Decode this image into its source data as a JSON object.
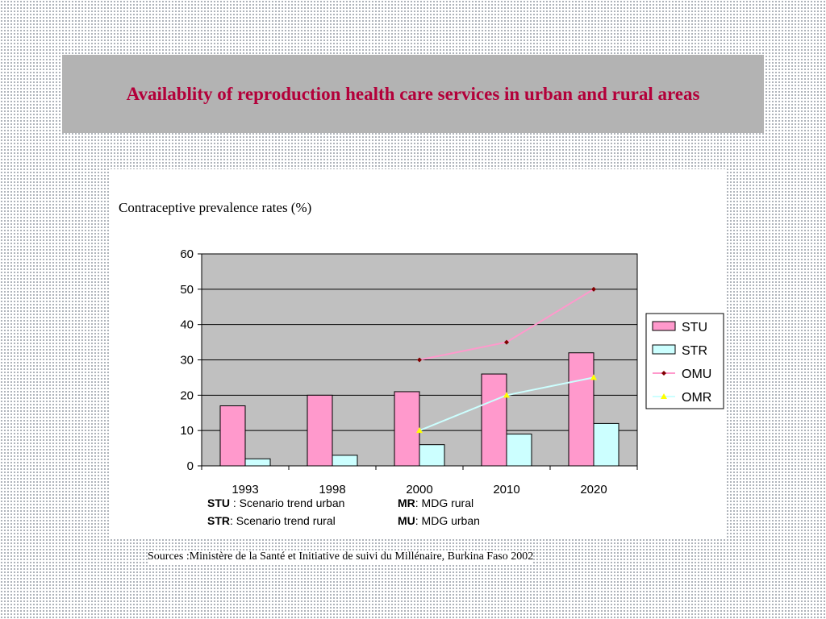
{
  "slide": {
    "title": "Availablity of reproduction health care services in urban and rural areas",
    "source": "Sources :Ministère de la Santé et Initiative de suivi du Millénaire, Burkina Faso 2002"
  },
  "chart_data": {
    "type": "bar",
    "title": "Contraceptive prevalence rates (%)",
    "xlabel": "",
    "ylabel": "",
    "categories": [
      "1993",
      "1998",
      "2000",
      "2010",
      "2020"
    ],
    "ylim": [
      0,
      60
    ],
    "yticks": [
      0,
      10,
      20,
      30,
      40,
      50,
      60
    ],
    "grid": true,
    "legend_position": "right",
    "series": [
      {
        "name": "STU",
        "kind": "bar",
        "color": "#ff99cc",
        "values": [
          17,
          20,
          21,
          26,
          32
        ]
      },
      {
        "name": "STR",
        "kind": "bar",
        "color": "#ccffff",
        "values": [
          2,
          3,
          6,
          9,
          12
        ]
      },
      {
        "name": "OMU",
        "kind": "line",
        "color": "#ff99cc",
        "marker": "diamond",
        "marker_color": "#800000",
        "values": [
          null,
          null,
          30,
          35,
          50
        ]
      },
      {
        "name": "OMR",
        "kind": "line",
        "color": "#ccffff",
        "marker": "triangle",
        "marker_color": "#ffff00",
        "values": [
          null,
          null,
          10,
          20,
          25
        ]
      }
    ],
    "plot_background": "#c0c0c0"
  },
  "notes": [
    {
      "abbr": "STU",
      "text": " : Scenario trend urban"
    },
    {
      "abbr": "MR",
      "text": ": MDG rural"
    },
    {
      "abbr": "STR",
      "text": ": Scenario trend rural"
    },
    {
      "abbr": "MU",
      "text": ": MDG urban"
    }
  ]
}
